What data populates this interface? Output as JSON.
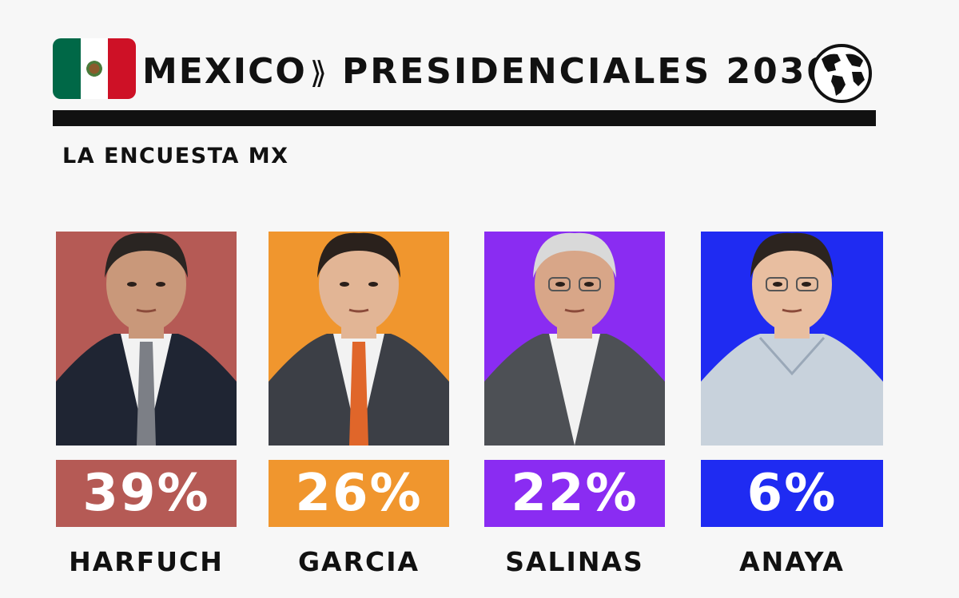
{
  "header": {
    "country": "MEXICO",
    "chevron": "⟫",
    "title": "PRESIDENCIALES 2030",
    "flag_icon": "mexico-flag-icon",
    "globe_icon": "globe-icon"
  },
  "source": "LA ENCUESTA MX",
  "chart_data": {
    "type": "bar",
    "categories": [
      "HARFUCH",
      "GARCIA",
      "SALINAS",
      "ANAYA"
    ],
    "values": [
      39,
      26,
      22,
      6
    ],
    "value_labels": [
      "39%",
      "26%",
      "22%",
      "6%"
    ],
    "colors": [
      "#b55a55",
      "#f0962e",
      "#8a2cf2",
      "#1f2bf2"
    ],
    "unit": "%"
  }
}
